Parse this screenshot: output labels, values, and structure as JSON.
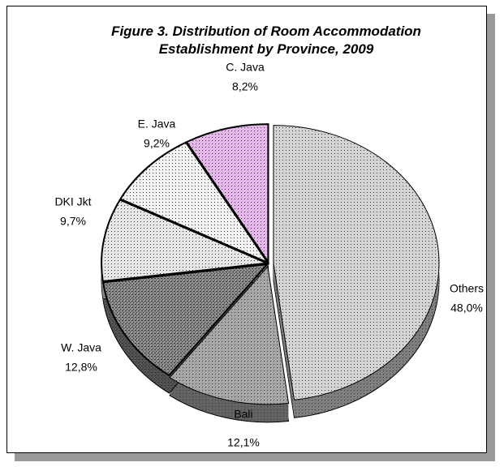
{
  "chart_data": {
    "type": "pie",
    "title": "Figure 3. Distribution of Room Accommodation Establishment by Province, 2009",
    "categories": [
      "Others",
      "Bali",
      "W. Java",
      "DKI Jkt",
      "E. Java",
      "C. Java"
    ],
    "values": [
      48.0,
      12.1,
      12.8,
      9.7,
      9.2,
      8.2
    ],
    "value_labels": [
      "48,0%",
      "12,1%",
      "12,8%",
      "9,7%",
      "9,2%",
      "8,2%"
    ],
    "colors": [
      "#d4d4d4",
      "#a6a6a6",
      "#8c8c8c",
      "#e6e6e6",
      "#f2f2f2",
      "#e4b8e8"
    ]
  }
}
